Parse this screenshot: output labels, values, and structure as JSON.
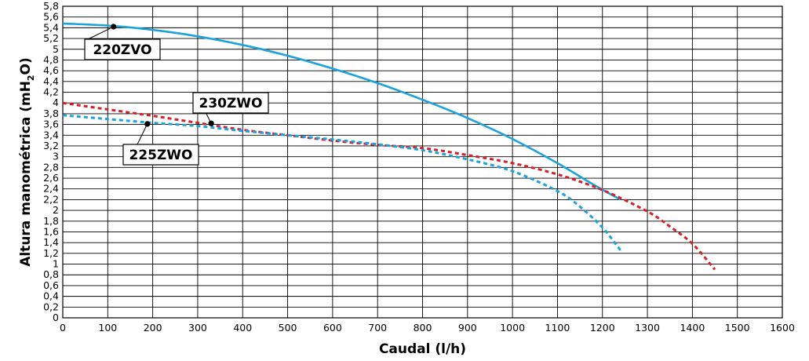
{
  "chart_data": {
    "type": "line",
    "xlabel": "Caudal (l/h)",
    "ylabel": "Altura manométrica  (mH",
    "ylabel_sub": "2",
    "ylabel_end": "O)",
    "xlim": [
      0,
      1600
    ],
    "ylim": [
      0,
      5.8
    ],
    "x_ticks": [
      0,
      100,
      200,
      300,
      400,
      500,
      600,
      700,
      800,
      900,
      1000,
      1100,
      1200,
      1300,
      1400,
      1500,
      1600
    ],
    "y_ticks": [
      0,
      0.2,
      0.4,
      0.6,
      0.8,
      1,
      1.2,
      1.4,
      1.6,
      1.8,
      2,
      2.2,
      2.4,
      2.6,
      2.8,
      3,
      3.2,
      3.4,
      3.6,
      3.8,
      4,
      4.2,
      4.4,
      4.6,
      4.8,
      5,
      5.2,
      5.4,
      5.6,
      5.8
    ],
    "grid": true,
    "series": [
      {
        "name": "220ZVO",
        "color": "#1aa3dc",
        "style": "solid",
        "x": [
          0,
          100,
          200,
          300,
          400,
          500,
          600,
          700,
          800,
          900,
          1000,
          1100,
          1180,
          1240
        ],
        "y": [
          5.48,
          5.44,
          5.36,
          5.24,
          5.08,
          4.88,
          4.64,
          4.37,
          4.06,
          3.72,
          3.33,
          2.88,
          2.48,
          2.2
        ]
      },
      {
        "name": "230ZWO",
        "color": "#d4202a",
        "style": "dashed",
        "x": [
          0,
          100,
          200,
          300,
          400,
          500,
          600,
          700,
          800,
          900,
          1000,
          1100,
          1200,
          1300,
          1350,
          1400,
          1450
        ],
        "y": [
          4.0,
          3.88,
          3.76,
          3.63,
          3.5,
          3.4,
          3.3,
          3.22,
          3.16,
          3.03,
          2.88,
          2.67,
          2.38,
          1.98,
          1.7,
          1.38,
          0.9
        ]
      },
      {
        "name": "225ZWO",
        "color": "#1aa3dc",
        "style": "dashed",
        "x": [
          0,
          100,
          200,
          300,
          400,
          500,
          600,
          700,
          800,
          900,
          1000,
          1100,
          1150,
          1200,
          1240
        ],
        "y": [
          3.77,
          3.7,
          3.63,
          3.57,
          3.48,
          3.4,
          3.32,
          3.23,
          3.12,
          2.95,
          2.73,
          2.36,
          2.07,
          1.68,
          1.26
        ]
      }
    ],
    "annotations": [
      {
        "text": "220ZVO",
        "series": "220ZVO",
        "point": [
          113,
          5.42
        ]
      },
      {
        "text": "230ZWO",
        "series": "230ZWO",
        "point": [
          330,
          3.62
        ]
      },
      {
        "text": "225ZWO",
        "series": "225ZWO",
        "point": [
          188,
          3.61
        ]
      }
    ]
  }
}
